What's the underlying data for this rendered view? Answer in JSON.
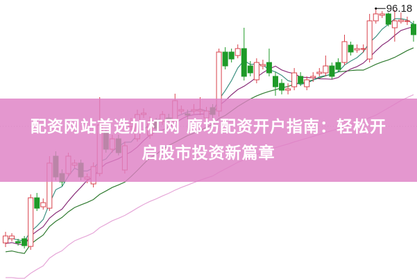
{
  "banner": {
    "line1": "配资网站首选加杠网 廊坊配资开户指南：轻松开",
    "line2": "启股市投资新篇章"
  },
  "chart_data": {
    "type": "candlestick",
    "max_label": "96.18",
    "ylim": [
      57.2,
      97.4
    ],
    "grid": "one dotted horizontal line",
    "colors": {
      "up": "#d8404a",
      "down": "#1e9a28",
      "ma5": "#3a8f80",
      "ma10": "#8a2f7a",
      "ma20": "#2f7a2f",
      "ma60": "#e6a6d8",
      "grid": "#bbbbbb"
    },
    "moving_averages": [
      5,
      10,
      20,
      60
    ],
    "ohlc": [
      [
        62.4,
        64.0,
        61.8,
        63.4
      ],
      [
        63.0,
        63.8,
        62.6,
        63.4
      ],
      [
        62.6,
        63.0,
        62.0,
        62.4
      ],
      [
        63.0,
        63.4,
        61.6,
        62.0
      ],
      [
        61.9,
        69.4,
        61.4,
        68.9
      ],
      [
        68.9,
        69.6,
        67.0,
        67.4
      ],
      [
        67.6,
        68.8,
        67.2,
        68.2
      ],
      [
        67.4,
        74.9,
        67.0,
        73.9
      ],
      [
        74.9,
        75.6,
        71.4,
        71.9
      ],
      [
        72.4,
        73.0,
        70.6,
        71.2
      ],
      [
        72.4,
        75.4,
        72.0,
        74.9
      ],
      [
        73.6,
        74.4,
        73.2,
        73.9
      ],
      [
        73.9,
        74.4,
        71.4,
        71.9
      ],
      [
        71.6,
        72.4,
        71.0,
        71.9
      ],
      [
        70.9,
        74.0,
        70.4,
        73.4
      ],
      [
        72.4,
        83.4,
        72.0,
        79.4
      ],
      [
        78.4,
        79.0,
        75.4,
        75.9
      ],
      [
        75.9,
        78.0,
        75.4,
        77.4
      ],
      [
        77.4,
        78.0,
        75.0,
        75.4
      ],
      [
        72.9,
        77.0,
        72.4,
        76.4
      ],
      [
        79.2,
        80.4,
        78.6,
        79.6
      ],
      [
        77.4,
        81.6,
        77.0,
        80.9
      ],
      [
        80.9,
        81.8,
        80.4,
        81.1
      ],
      [
        77.9,
        80.6,
        77.4,
        79.9
      ],
      [
        79.9,
        80.4,
        78.4,
        78.9
      ],
      [
        79.9,
        81.4,
        79.4,
        80.9
      ],
      [
        80.4,
        81.0,
        79.8,
        80.2
      ],
      [
        79.9,
        83.9,
        79.4,
        82.9
      ],
      [
        81.4,
        82.2,
        81.0,
        81.6
      ],
      [
        81.0,
        81.6,
        80.2,
        80.8
      ],
      [
        81.4,
        82.4,
        81.0,
        81.6
      ],
      [
        81.4,
        83.4,
        80.8,
        81.6
      ],
      [
        80.4,
        82.0,
        80.0,
        81.4
      ],
      [
        81.9,
        82.4,
        80.4,
        80.9
      ],
      [
        81.4,
        90.4,
        80.6,
        89.9
      ],
      [
        89.9,
        90.6,
        87.4,
        87.9
      ],
      [
        89.9,
        90.4,
        88.4,
        88.9
      ],
      [
        89.4,
        91.0,
        89.0,
        90.4
      ],
      [
        90.4,
        93.4,
        85.8,
        86.4
      ],
      [
        87.9,
        88.6,
        86.4,
        86.9
      ],
      [
        85.9,
        89.0,
        85.4,
        88.4
      ],
      [
        87.9,
        88.8,
        87.4,
        88.1
      ],
      [
        88.4,
        90.4,
        86.4,
        86.9
      ],
      [
        86.4,
        87.0,
        83.6,
        84.9
      ],
      [
        85.4,
        86.0,
        83.8,
        84.4
      ],
      [
        84.4,
        85.4,
        83.8,
        84.6
      ],
      [
        84.9,
        87.6,
        84.4,
        86.9
      ],
      [
        86.4,
        87.0,
        85.0,
        85.4
      ],
      [
        84.9,
        86.4,
        84.4,
        85.9
      ],
      [
        86.2,
        87.0,
        85.6,
        86.4
      ],
      [
        86.8,
        87.6,
        86.4,
        87.0
      ],
      [
        86.9,
        89.4,
        86.4,
        87.9
      ],
      [
        87.9,
        88.4,
        86.0,
        86.4
      ],
      [
        88.4,
        89.0,
        87.0,
        87.4
      ],
      [
        88.4,
        92.4,
        88.0,
        91.4
      ],
      [
        90.9,
        91.4,
        89.4,
        89.9
      ],
      [
        90.2,
        91.0,
        89.8,
        90.4
      ],
      [
        90.4,
        91.0,
        89.8,
        90.4
      ],
      [
        88.9,
        95.4,
        88.4,
        94.4
      ],
      [
        94.4,
        96.18,
        94.0,
        95.4
      ],
      [
        95.2,
        95.8,
        94.8,
        95.4
      ],
      [
        95.4,
        95.6,
        93.6,
        93.9
      ],
      [
        93.4,
        96.0,
        91.4,
        94.4
      ],
      [
        94.3,
        95.6,
        94.0,
        94.5
      ],
      [
        94.4,
        95.0,
        93.8,
        94.4
      ],
      [
        93.9,
        94.4,
        91.4,
        92.4
      ]
    ]
  }
}
